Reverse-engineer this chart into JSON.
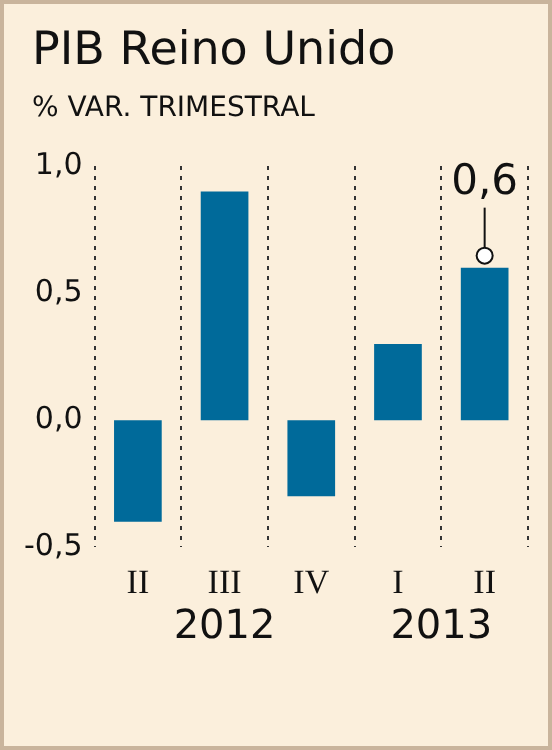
{
  "chart_data": {
    "type": "bar",
    "title": "PIB Reino Unido",
    "subtitle": "% VAR. TRIMESTRAL",
    "categories": [
      "II",
      "III",
      "IV",
      "I",
      "II"
    ],
    "values": [
      -0.4,
      0.9,
      -0.3,
      0.3,
      0.6
    ],
    "value_labels": [
      null,
      null,
      null,
      null,
      "0,6"
    ],
    "color": "#006a9a",
    "ylim": [
      -0.5,
      1.0
    ],
    "yticks": [
      {
        "value": -0.5,
        "label": "-0,5"
      },
      {
        "value": 0,
        "label": "0,0"
      },
      {
        "value": 0.5,
        "label": "0,5"
      },
      {
        "value": 1,
        "label": "1,0"
      }
    ],
    "grid": "x",
    "annotations": [
      "2012",
      "2013"
    ]
  }
}
